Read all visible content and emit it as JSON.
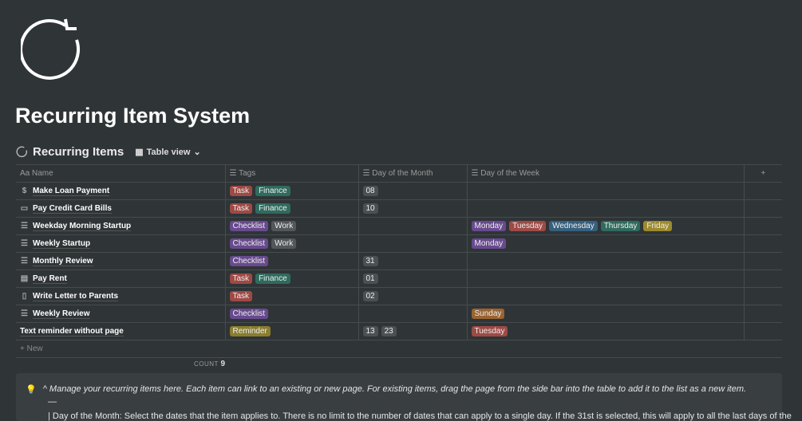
{
  "page": {
    "title": "Recurring Item System",
    "icon": "refresh-icon"
  },
  "database": {
    "title": "Recurring Items",
    "view_label": "Table view"
  },
  "columns": [
    "Name",
    "Tags",
    "Day of the Month",
    "Day of the Week"
  ],
  "rows": [
    {
      "name": "Make Loan Payment",
      "icon": "dollar-icon",
      "tags": [
        {
          "label": "Task",
          "color": "#9e4a45"
        },
        {
          "label": "Finance",
          "color": "#2f6b5e"
        }
      ],
      "dom": [
        "08"
      ],
      "dow": []
    },
    {
      "name": "Pay Credit Card Bills",
      "icon": "credit-card-icon",
      "tags": [
        {
          "label": "Task",
          "color": "#9e4a45"
        },
        {
          "label": "Finance",
          "color": "#2f6b5e"
        }
      ],
      "dom": [
        "10"
      ],
      "dow": []
    },
    {
      "name": "Weekday Morning Startup",
      "icon": "checklist-icon",
      "tags": [
        {
          "label": "Checklist",
          "color": "#684a8e"
        },
        {
          "label": "Work",
          "color": "#53575a"
        }
      ],
      "dom": [],
      "dow": [
        {
          "label": "Monday",
          "color": "#684a8e"
        },
        {
          "label": "Tuesday",
          "color": "#9e4a45"
        },
        {
          "label": "Wednesday",
          "color": "#36607e"
        },
        {
          "label": "Thursday",
          "color": "#2f6b5e"
        },
        {
          "label": "Friday",
          "color": "#9c8a2e"
        }
      ]
    },
    {
      "name": "Weekly Startup",
      "icon": "checklist-icon",
      "tags": [
        {
          "label": "Checklist",
          "color": "#684a8e"
        },
        {
          "label": "Work",
          "color": "#53575a"
        }
      ],
      "dom": [],
      "dow": [
        {
          "label": "Monday",
          "color": "#684a8e"
        }
      ]
    },
    {
      "name": "Monthly Review",
      "icon": "checklist-icon",
      "tags": [
        {
          "label": "Checklist",
          "color": "#684a8e"
        }
      ],
      "dom": [
        "31"
      ],
      "dow": []
    },
    {
      "name": "Pay Rent",
      "icon": "rent-icon",
      "tags": [
        {
          "label": "Task",
          "color": "#9e4a45"
        },
        {
          "label": "Finance",
          "color": "#2f6b5e"
        }
      ],
      "dom": [
        "01"
      ],
      "dow": []
    },
    {
      "name": "Write Letter to Parents",
      "icon": "document-icon",
      "tags": [
        {
          "label": "Task",
          "color": "#9e4a45"
        }
      ],
      "dom": [
        "02"
      ],
      "dow": []
    },
    {
      "name": "Weekly Review",
      "icon": "checklist-icon",
      "tags": [
        {
          "label": "Checklist",
          "color": "#684a8e"
        }
      ],
      "dom": [],
      "dow": [
        {
          "label": "Sunday",
          "color": "#9a6431"
        }
      ]
    },
    {
      "name": "Text reminder without page",
      "icon": "",
      "tags": [
        {
          "label": "Reminder",
          "color": "#8a7d2e"
        }
      ],
      "dom": [
        "13",
        "23"
      ],
      "dow": [
        {
          "label": "Tuesday",
          "color": "#9e4a45"
        }
      ]
    }
  ],
  "new_label": "+ New",
  "count": {
    "label": "COUNT",
    "value": "9"
  },
  "callout": {
    "text": "^ Manage your recurring items here. Each item can link to an existing or new page. For existing items, drag the page from the side bar into the table to add it to the list as a new item.",
    "dash": "—",
    "line2": "| Day of the Month: Select the dates that the item applies to. There is no limit to the number of dates that can apply to a single day. If the 31st is selected, this will apply to all the last days of the"
  }
}
